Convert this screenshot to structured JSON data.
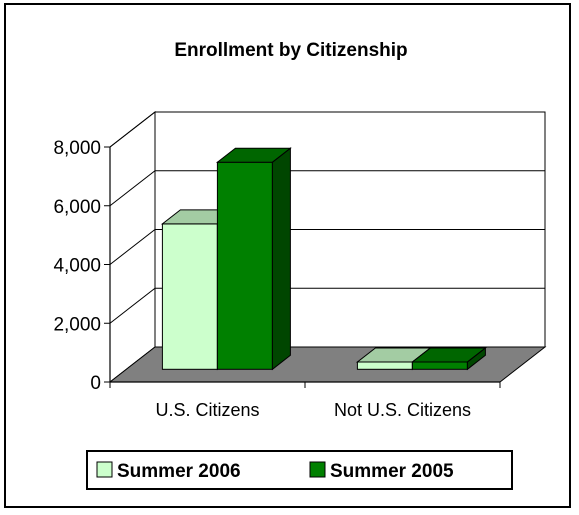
{
  "chart_data": {
    "type": "bar",
    "title": "Enrollment by Citizenship",
    "xlabel": "",
    "ylabel": "",
    "categories": [
      "U.S. Citizens",
      "Not U.S. Citizens"
    ],
    "series": [
      {
        "name": "Summer 2006",
        "values": [
          4950,
          250
        ],
        "color": "#ccffcc"
      },
      {
        "name": "Summer 2005",
        "values": [
          7050,
          250
        ],
        "color": "#008000"
      }
    ],
    "ylim": [
      0,
      8000
    ],
    "yticks": [
      "0",
      "2,000",
      "4,000",
      "6,000",
      "8,000"
    ],
    "ytick_values": [
      0,
      2000,
      4000,
      6000,
      8000
    ],
    "grid": true,
    "legend_position": "bottom",
    "floor_color": "#808080",
    "wall_color": "#ffffff"
  }
}
